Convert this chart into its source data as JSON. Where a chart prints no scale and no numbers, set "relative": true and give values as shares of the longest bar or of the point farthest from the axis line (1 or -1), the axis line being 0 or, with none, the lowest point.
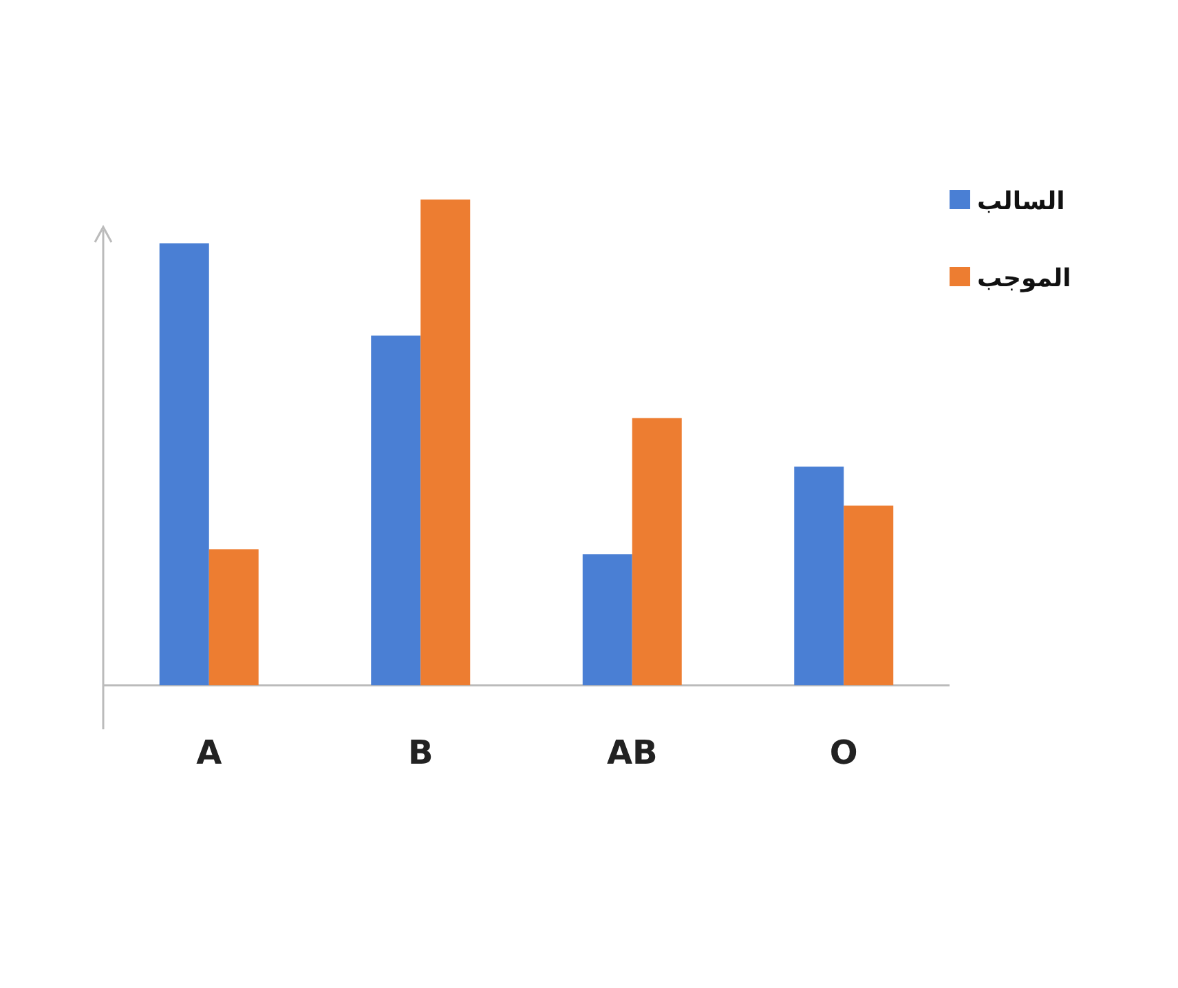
{
  "chart_data": {
    "type": "bar",
    "relative": true,
    "legend": "top right",
    "categories": [
      "A",
      "B",
      "AB",
      "O"
    ],
    "series": [
      {
        "name": "السالب",
        "color": "#4a7fd4",
        "values": [
          0.91,
          0.72,
          0.27,
          0.45
        ]
      },
      {
        "name": "الموجب",
        "color": "#ed7d31",
        "values": [
          0.28,
          1,
          0.55,
          0.37
        ]
      }
    ]
  }
}
